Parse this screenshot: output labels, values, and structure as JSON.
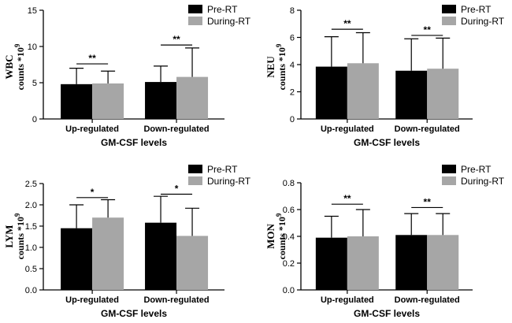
{
  "colors": {
    "pre": "#000000",
    "during": "#a6a6a6",
    "axis": "#000000"
  },
  "ylabel_multiplier": "counts *10",
  "ylabel_exponent": "9",
  "chart_data": [
    {
      "type": "bar",
      "ylabel": "WBC",
      "xlabel": "GM-CSF levels",
      "categories": [
        "Up-regulated",
        "Down-regulated"
      ],
      "ylim": [
        0,
        15
      ],
      "yticks": [
        0,
        5,
        10,
        15
      ],
      "yticklabels": [
        "0",
        "5",
        "10",
        "15"
      ],
      "series": [
        {
          "name": "Pre-RT",
          "values": [
            4.8,
            5.1
          ],
          "errors": [
            7.0,
            7.3
          ]
        },
        {
          "name": "During-RT",
          "values": [
            4.9,
            5.8
          ],
          "errors": [
            6.6,
            9.8
          ]
        }
      ],
      "significance": [
        "**",
        "**"
      ],
      "sig_y": [
        7.6,
        10.2
      ]
    },
    {
      "type": "bar",
      "ylabel": "NEU",
      "xlabel": "GM-CSF levels",
      "categories": [
        "Up-regulated",
        "Down-regulated"
      ],
      "ylim": [
        0,
        8
      ],
      "yticks": [
        0,
        2,
        4,
        6,
        8
      ],
      "yticklabels": [
        "0",
        "2",
        "4",
        "6",
        "8"
      ],
      "series": [
        {
          "name": "Pre-RT",
          "values": [
            3.85,
            3.55
          ],
          "errors": [
            6.05,
            5.9
          ]
        },
        {
          "name": "During-RT",
          "values": [
            4.1,
            3.7
          ],
          "errors": [
            6.35,
            5.95
          ]
        }
      ],
      "significance": [
        "**",
        "**"
      ],
      "sig_y": [
        6.6,
        6.15
      ]
    },
    {
      "type": "bar",
      "ylabel": "LYM",
      "xlabel": "GM-CSF levels",
      "categories": [
        "Up-regulated",
        "Down-regulated"
      ],
      "ylim": [
        0,
        2.5
      ],
      "yticks": [
        0,
        0.5,
        1,
        1.5,
        2,
        2.5
      ],
      "yticklabels": [
        "0.0",
        "0.5",
        "1.0",
        "1.5",
        "2.0",
        "2.5"
      ],
      "series": [
        {
          "name": "Pre-RT",
          "values": [
            1.45,
            1.58
          ],
          "errors": [
            2.0,
            2.2
          ]
        },
        {
          "name": "During-RT",
          "values": [
            1.7,
            1.27
          ],
          "errors": [
            2.12,
            1.92
          ]
        }
      ],
      "significance": [
        "*",
        "*"
      ],
      "sig_y": [
        2.17,
        2.25
      ]
    },
    {
      "type": "bar",
      "ylabel": "MON",
      "xlabel": "GM-CSF levels",
      "categories": [
        "Up-regulated",
        "Down-regulated"
      ],
      "ylim": [
        0,
        0.8
      ],
      "yticks": [
        0,
        0.2,
        0.4,
        0.6,
        0.8
      ],
      "yticklabels": [
        "0.0",
        "0.2",
        "0.4",
        "0.6",
        "0.8"
      ],
      "series": [
        {
          "name": "Pre-RT",
          "values": [
            0.39,
            0.41
          ],
          "errors": [
            0.55,
            0.57
          ]
        },
        {
          "name": "During-RT",
          "values": [
            0.4,
            0.41
          ],
          "errors": [
            0.6,
            0.57
          ]
        }
      ],
      "significance": [
        "**",
        "**"
      ],
      "sig_y": [
        0.64,
        0.615
      ]
    }
  ]
}
